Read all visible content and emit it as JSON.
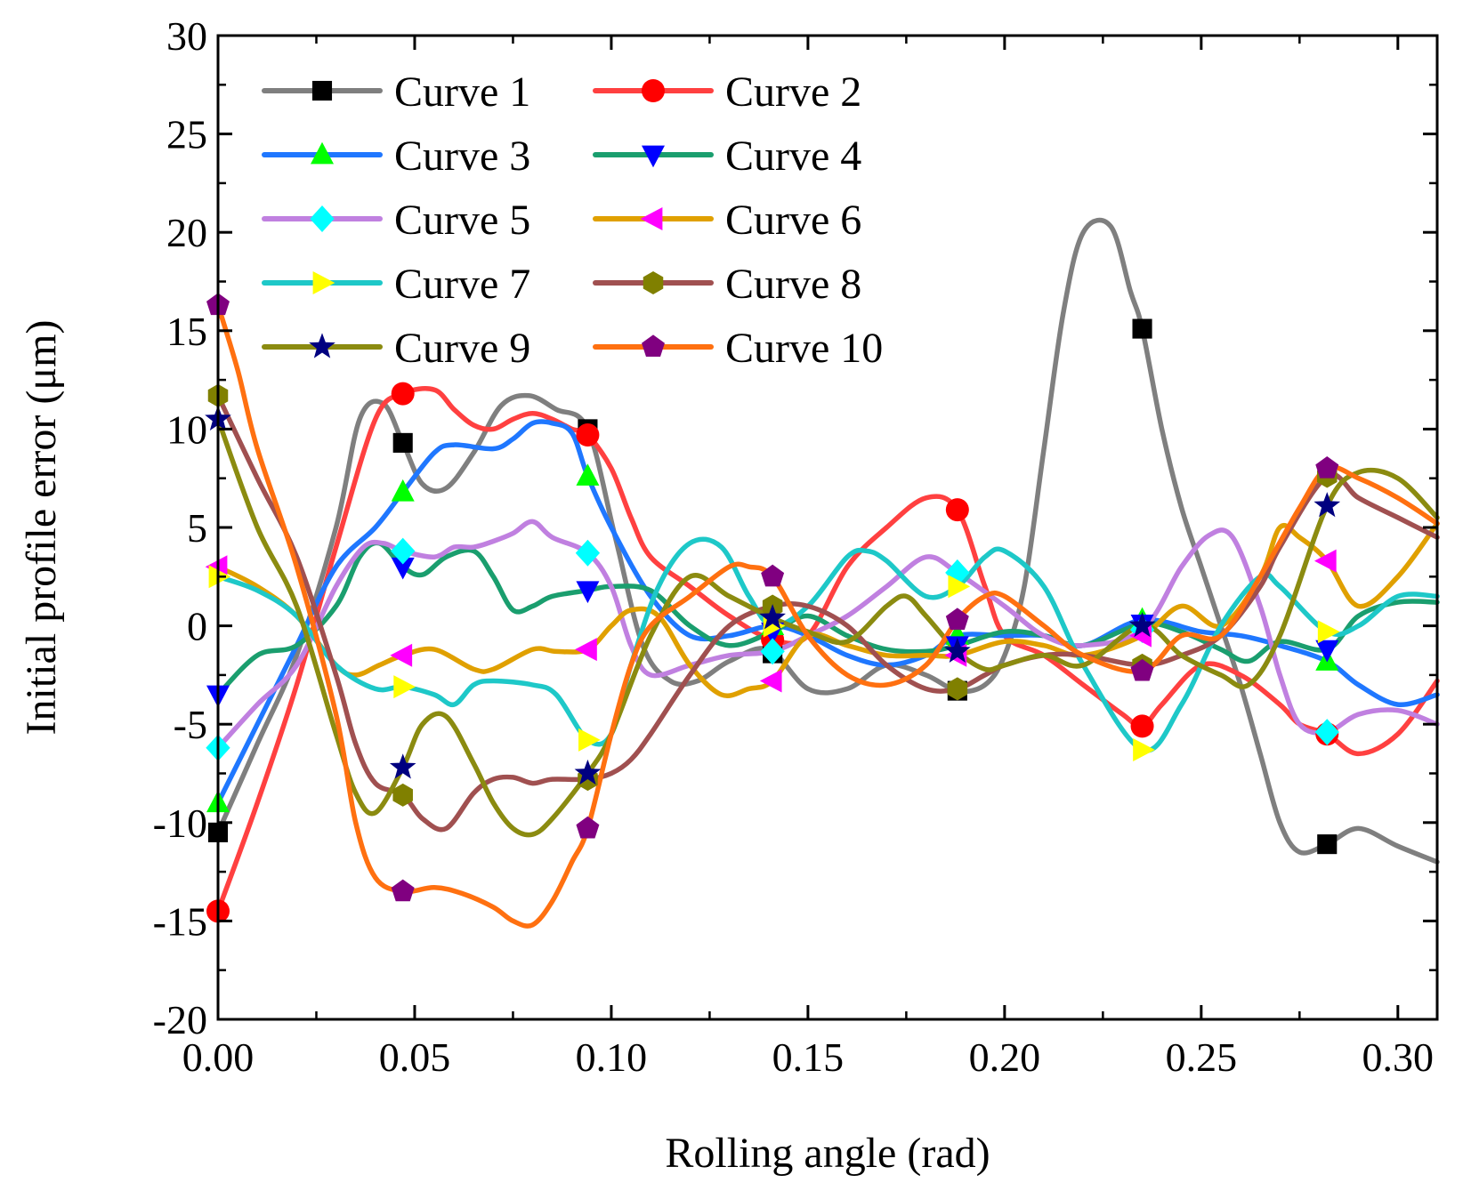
{
  "chart_data": {
    "type": "line",
    "title": "",
    "xlabel": "Rolling angle (rad)",
    "ylabel": "Initial profile error (μm)",
    "xlim": [
      0,
      0.31
    ],
    "ylim": [
      -20,
      30
    ],
    "xticks": [
      0.0,
      0.05,
      0.1,
      0.15,
      0.2,
      0.25,
      0.3
    ],
    "xtick_labels": [
      "0.00",
      "0.05",
      "0.10",
      "0.15",
      "0.20",
      "0.25",
      "0.30"
    ],
    "yticks": [
      -20,
      -15,
      -10,
      -5,
      0,
      5,
      10,
      15,
      20,
      25,
      30
    ],
    "ytick_labels": [
      "-20",
      "-15",
      "-10",
      "-5",
      "0",
      "5",
      "10",
      "15",
      "20",
      "25",
      "30"
    ],
    "grid": false,
    "legend_position": "top-left",
    "legend_columns": 2,
    "marker_x": [
      0.0,
      0.047,
      0.094,
      0.141,
      0.188,
      0.235,
      0.282
    ],
    "series": [
      {
        "name": "Curve 1",
        "color": "#7f7f7f",
        "marker": "square",
        "marker_color": "#000000",
        "x": [
          0,
          0.01,
          0.02,
          0.03,
          0.036,
          0.042,
          0.047,
          0.052,
          0.058,
          0.065,
          0.072,
          0.079,
          0.086,
          0.094,
          0.101,
          0.108,
          0.115,
          0.122,
          0.13,
          0.14,
          0.15,
          0.16,
          0.17,
          0.18,
          0.188,
          0.195,
          0.2,
          0.205,
          0.21,
          0.215,
          0.22,
          0.227,
          0.232,
          0.235,
          0.24,
          0.245,
          0.25,
          0.255,
          0.26,
          0.265,
          0.27,
          0.275,
          0.282,
          0.29,
          0.3,
          0.31
        ],
        "y": [
          -10.5,
          -6,
          -1.5,
          5,
          10.5,
          11.3,
          9.3,
          7.2,
          7.0,
          8.8,
          11.2,
          11.7,
          11,
          10,
          4.5,
          -1,
          -2.8,
          -2.8,
          -1.8,
          -1.2,
          -3.2,
          -3.2,
          -2,
          -2.5,
          -3.3,
          -3.0,
          -1.5,
          2,
          9,
          16,
          20,
          20.3,
          17,
          15.1,
          10,
          6,
          3,
          0,
          -3,
          -6.5,
          -10,
          -11.5,
          -11.1,
          -10.3,
          -11.2,
          -12
        ]
      },
      {
        "name": "Curve 2",
        "color": "#ff4040",
        "marker": "circle",
        "marker_color": "#ff0000",
        "x": [
          0,
          0.01,
          0.02,
          0.03,
          0.04,
          0.047,
          0.055,
          0.06,
          0.065,
          0.07,
          0.075,
          0.08,
          0.085,
          0.09,
          0.094,
          0.1,
          0.105,
          0.11,
          0.12,
          0.13,
          0.141,
          0.15,
          0.16,
          0.17,
          0.18,
          0.188,
          0.195,
          0.2,
          0.21,
          0.22,
          0.23,
          0.235,
          0.24,
          0.25,
          0.26,
          0.27,
          0.275,
          0.282,
          0.29,
          0.3,
          0.31
        ],
        "y": [
          -14.5,
          -9,
          -3,
          4,
          10.5,
          11.8,
          12,
          11,
          10.2,
          10,
          10.5,
          10.8,
          10.5,
          10,
          9.7,
          8,
          5.5,
          3.5,
          2,
          0.5,
          -0.7,
          -0.5,
          3,
          5,
          6.5,
          5.9,
          2,
          -0.5,
          -1.5,
          -3,
          -4.5,
          -5.1,
          -4,
          -2,
          -2.5,
          -4,
          -5,
          -5.5,
          -6.5,
          -5.5,
          -2.8
        ]
      },
      {
        "name": "Curve 3",
        "color": "#1f77ff",
        "marker": "triangle-up",
        "marker_color": "#00ff00",
        "x": [
          0,
          0.01,
          0.02,
          0.03,
          0.04,
          0.047,
          0.055,
          0.06,
          0.07,
          0.075,
          0.08,
          0.085,
          0.09,
          0.094,
          0.1,
          0.11,
          0.12,
          0.13,
          0.141,
          0.15,
          0.16,
          0.17,
          0.18,
          0.188,
          0.2,
          0.21,
          0.22,
          0.235,
          0.25,
          0.26,
          0.27,
          0.282,
          0.29,
          0.3,
          0.31
        ],
        "y": [
          -9,
          -5,
          -1,
          3,
          5,
          6.8,
          8.8,
          9.2,
          9,
          9.5,
          10.3,
          10.3,
          9.8,
          7.6,
          5,
          1.5,
          -0.5,
          -0.5,
          0,
          -0.5,
          -1.5,
          -2,
          -1.5,
          -0.5,
          -0.5,
          -0.5,
          -1,
          0.3,
          -0.3,
          -0.5,
          -1,
          -1.8,
          -3,
          -4,
          -3.5
        ]
      },
      {
        "name": "Curve 4",
        "color": "#1a9e6e",
        "marker": "triangle-down",
        "marker_color": "#0000ff",
        "x": [
          0,
          0.01,
          0.02,
          0.03,
          0.036,
          0.041,
          0.047,
          0.052,
          0.058,
          0.065,
          0.07,
          0.075,
          0.08,
          0.085,
          0.094,
          0.1,
          0.11,
          0.12,
          0.13,
          0.141,
          0.15,
          0.16,
          0.17,
          0.18,
          0.188,
          0.2,
          0.21,
          0.22,
          0.235,
          0.245,
          0.255,
          0.262,
          0.27,
          0.282,
          0.29,
          0.3,
          0.31
        ],
        "y": [
          -3.5,
          -1.5,
          -1,
          1,
          3.5,
          4.2,
          3,
          2.6,
          3.5,
          3.8,
          2.5,
          0.8,
          1,
          1.5,
          1.8,
          2,
          1.8,
          0,
          -1,
          -0.3,
          0.5,
          -0.5,
          -1.2,
          -1.3,
          -1,
          -0.3,
          -0.5,
          -1,
          0.1,
          -0.3,
          -1.2,
          -1.8,
          -0.8,
          -1.2,
          0.5,
          1.2,
          1.2
        ]
      },
      {
        "name": "Curve 5",
        "color": "#c080e0",
        "marker": "diamond",
        "marker_color": "#00ffff",
        "x": [
          0,
          0.01,
          0.02,
          0.03,
          0.037,
          0.042,
          0.047,
          0.055,
          0.06,
          0.065,
          0.07,
          0.075,
          0.08,
          0.085,
          0.094,
          0.1,
          0.105,
          0.11,
          0.12,
          0.13,
          0.141,
          0.15,
          0.16,
          0.17,
          0.18,
          0.188,
          0.2,
          0.21,
          0.22,
          0.235,
          0.245,
          0.252,
          0.258,
          0.265,
          0.27,
          0.275,
          0.282,
          0.29,
          0.3,
          0.31
        ],
        "y": [
          -6.2,
          -4,
          -2,
          2,
          4,
          4.2,
          3.8,
          3.5,
          4,
          4,
          4.3,
          4.7,
          5.3,
          4.5,
          3.7,
          2,
          -1,
          -2.5,
          -2,
          -1.5,
          -1.3,
          -0.5,
          0.5,
          2,
          3.5,
          2.7,
          1,
          -0.5,
          -1,
          -0.2,
          3,
          4.6,
          4.5,
          1,
          -2.5,
          -5,
          -5.4,
          -4.5,
          -4.3,
          -5
        ]
      },
      {
        "name": "Curve 6",
        "color": "#e0a000",
        "marker": "triangle-left",
        "marker_color": "#ff00ff",
        "x": [
          0,
          0.01,
          0.02,
          0.03,
          0.035,
          0.041,
          0.047,
          0.055,
          0.065,
          0.07,
          0.08,
          0.086,
          0.094,
          0.1,
          0.105,
          0.112,
          0.12,
          0.128,
          0.135,
          0.141,
          0.15,
          0.16,
          0.17,
          0.18,
          0.188,
          0.2,
          0.21,
          0.22,
          0.235,
          0.245,
          0.255,
          0.265,
          0.27,
          0.275,
          0.282,
          0.29,
          0.3,
          0.31
        ],
        "y": [
          3.0,
          2.0,
          0.5,
          -2,
          -2.5,
          -2,
          -1.5,
          -1.2,
          -2.2,
          -2.2,
          -1.2,
          -1.3,
          -1.2,
          0,
          0.8,
          0.5,
          -2,
          -3.5,
          -3.2,
          -2.8,
          -0.5,
          -1,
          -1.5,
          -1.5,
          -1.5,
          -0.8,
          -1,
          -1.5,
          -0.5,
          1,
          0,
          2.5,
          5,
          4.5,
          3.3,
          1,
          2.5,
          5.2
        ]
      },
      {
        "name": "Curve 7",
        "color": "#1ec8c8",
        "marker": "triangle-right",
        "marker_color": "#ffff00",
        "x": [
          0,
          0.01,
          0.02,
          0.03,
          0.04,
          0.047,
          0.055,
          0.06,
          0.065,
          0.07,
          0.08,
          0.086,
          0.094,
          0.1,
          0.105,
          0.112,
          0.12,
          0.128,
          0.135,
          0.141,
          0.15,
          0.16,
          0.165,
          0.17,
          0.18,
          0.188,
          0.195,
          0.2,
          0.21,
          0.22,
          0.235,
          0.245,
          0.255,
          0.265,
          0.27,
          0.282,
          0.29,
          0.3,
          0.31
        ],
        "y": [
          2.5,
          1.8,
          0.5,
          -2,
          -3.2,
          -3.1,
          -3.5,
          -4,
          -3,
          -2.8,
          -3,
          -3.5,
          -5.8,
          -5.5,
          -2,
          2,
          4.2,
          4,
          1.5,
          0,
          1,
          3.5,
          3.8,
          3.3,
          1.5,
          2.0,
          3.5,
          3.8,
          2,
          -2,
          -6.3,
          -4,
          0,
          2.5,
          2,
          -0.3,
          0,
          1.5,
          1.5
        ]
      },
      {
        "name": "Curve 8",
        "color": "#a05050",
        "marker": "hexagon",
        "marker_color": "#808000",
        "x": [
          0,
          0.01,
          0.02,
          0.03,
          0.035,
          0.04,
          0.047,
          0.052,
          0.058,
          0.065,
          0.07,
          0.075,
          0.08,
          0.085,
          0.094,
          0.1,
          0.105,
          0.11,
          0.12,
          0.13,
          0.141,
          0.15,
          0.16,
          0.17,
          0.18,
          0.188,
          0.195,
          0.2,
          0.21,
          0.22,
          0.235,
          0.245,
          0.255,
          0.265,
          0.27,
          0.282,
          0.29,
          0.3,
          0.31
        ],
        "y": [
          11.7,
          7.5,
          3.5,
          -2.5,
          -6,
          -8,
          -8.6,
          -9.8,
          -10.3,
          -8.5,
          -7.8,
          -7.7,
          -8,
          -7.8,
          -7.8,
          -7.5,
          -6.8,
          -5.5,
          -2.5,
          0,
          1,
          1,
          0,
          -2,
          -3.2,
          -3.2,
          -2.5,
          -2,
          -1.5,
          -1.5,
          -2,
          -1.5,
          -0.5,
          2,
          4,
          7.6,
          6.5,
          5.5,
          4.5
        ]
      },
      {
        "name": "Curve 9",
        "color": "#8b8b10",
        "marker": "star",
        "marker_color": "#000080",
        "x": [
          0,
          0.01,
          0.02,
          0.03,
          0.035,
          0.04,
          0.047,
          0.052,
          0.058,
          0.065,
          0.07,
          0.075,
          0.08,
          0.085,
          0.094,
          0.1,
          0.11,
          0.12,
          0.13,
          0.141,
          0.15,
          0.16,
          0.17,
          0.175,
          0.18,
          0.188,
          0.195,
          0.2,
          0.21,
          0.22,
          0.235,
          0.245,
          0.255,
          0.262,
          0.27,
          0.282,
          0.29,
          0.3,
          0.31
        ],
        "y": [
          10.5,
          5,
          1,
          -5.5,
          -8.5,
          -9.5,
          -7.2,
          -5,
          -4.6,
          -7,
          -9,
          -10.3,
          -10.6,
          -9.8,
          -7.5,
          -5.5,
          -0.5,
          2.5,
          1.5,
          0.4,
          -0.3,
          -0.8,
          1,
          1.5,
          0.5,
          -1.3,
          -2.2,
          -2,
          -1.5,
          -2,
          0,
          -1.5,
          -2.5,
          -3,
          -0.5,
          6.1,
          7.8,
          7.5,
          5.5
        ]
      },
      {
        "name": "Curve 10",
        "color": "#ff7010",
        "marker": "pentagon",
        "marker_color": "#800080",
        "x": [
          0,
          0.005,
          0.01,
          0.02,
          0.03,
          0.035,
          0.04,
          0.047,
          0.055,
          0.062,
          0.07,
          0.075,
          0.08,
          0.085,
          0.09,
          0.094,
          0.1,
          0.105,
          0.11,
          0.12,
          0.13,
          0.135,
          0.141,
          0.15,
          0.16,
          0.17,
          0.18,
          0.188,
          0.195,
          0.2,
          0.21,
          0.22,
          0.235,
          0.245,
          0.255,
          0.265,
          0.275,
          0.282,
          0.29,
          0.3,
          0.31
        ],
        "y": [
          16.3,
          13,
          9,
          3,
          -4.5,
          -10,
          -12.8,
          -13.5,
          -13.3,
          -13.6,
          -14.3,
          -15,
          -15.2,
          -14,
          -12,
          -10.3,
          -5.5,
          -2,
          0,
          1.5,
          3,
          3,
          2.5,
          -0.5,
          -2.5,
          -3,
          -2,
          0.3,
          1.5,
          1.5,
          0,
          -1.5,
          -2.3,
          -0.5,
          -0.5,
          2.5,
          6,
          8.0,
          7.5,
          6.5,
          5.2
        ]
      }
    ]
  }
}
